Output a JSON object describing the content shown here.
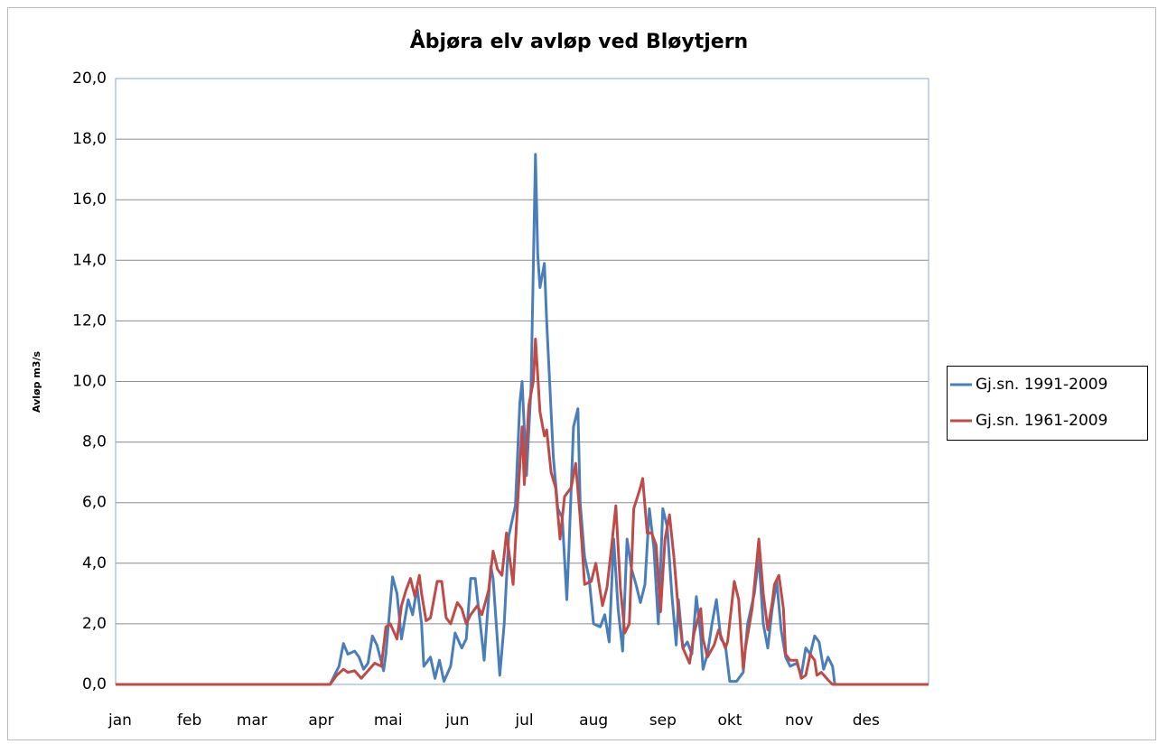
{
  "chart_data": {
    "type": "line",
    "title": "Åbjøra elv avløp ved Bløytjern",
    "y_label": "Avløp m3/s",
    "xlim": [
      1,
      365
    ],
    "xticks": [
      {
        "value": 1,
        "label": "jan"
      },
      {
        "value": 32,
        "label": "feb"
      },
      {
        "value": 60,
        "label": "mar"
      },
      {
        "value": 91,
        "label": "apr"
      },
      {
        "value": 121,
        "label": "mai"
      },
      {
        "value": 152,
        "label": "jun"
      },
      {
        "value": 182,
        "label": "jul"
      },
      {
        "value": 213,
        "label": "aug"
      },
      {
        "value": 244,
        "label": "sep"
      },
      {
        "value": 274,
        "label": "okt"
      },
      {
        "value": 305,
        "label": "nov"
      },
      {
        "value": 335,
        "label": "des"
      }
    ],
    "ylim": [
      0,
      20
    ],
    "yticks": [
      {
        "value": 0,
        "label": "0,0"
      },
      {
        "value": 2,
        "label": "2,0"
      },
      {
        "value": 4,
        "label": "4,0"
      },
      {
        "value": 6,
        "label": "6,0"
      },
      {
        "value": 8,
        "label": "8,0"
      },
      {
        "value": 10,
        "label": "10,0"
      },
      {
        "value": 12,
        "label": "12,0"
      },
      {
        "value": 14,
        "label": "14,0"
      },
      {
        "value": 16,
        "label": "16,0"
      },
      {
        "value": 18,
        "label": "18,0"
      },
      {
        "value": 20,
        "label": "20,0"
      }
    ],
    "grid": true,
    "legend": "right",
    "series": [
      {
        "name": "Gj.sn. 1991-2009",
        "color": "#4a7ebb",
        "x": [
          1,
          97,
          99,
          101,
          103,
          105,
          108,
          110,
          112,
          114,
          116,
          118,
          121,
          122,
          125,
          127,
          129,
          132,
          134,
          136,
          138,
          139,
          142,
          144,
          146,
          148,
          151,
          153,
          156,
          158,
          160,
          162,
          165,
          166,
          169,
          170,
          173,
          175,
          177,
          180,
          182,
          183,
          185,
          187,
          189,
          190,
          191,
          193,
          194,
          197,
          199,
          201,
          203,
          204,
          206,
          208,
          209,
          211,
          213,
          215,
          218,
          220,
          222,
          224,
          226,
          228,
          230,
          232,
          234,
          236,
          238,
          240,
          242,
          244,
          246,
          248,
          250,
          252,
          253,
          255,
          257,
          259,
          261,
          263,
          264,
          266,
          268,
          270,
          272,
          274,
          276,
          279,
          282,
          284,
          287,
          289,
          291,
          293,
          295,
          297,
          299,
          301,
          303,
          306,
          308,
          310,
          312,
          314,
          316,
          318,
          320,
          322,
          323,
          365
        ],
        "values": [
          0,
          0,
          0.3,
          0.6,
          1.35,
          1.0,
          1.1,
          0.9,
          0.5,
          0.7,
          1.6,
          1.3,
          0.45,
          1.0,
          3.55,
          3.0,
          1.5,
          2.8,
          2.3,
          3.2,
          2.0,
          0.6,
          0.9,
          0.2,
          0.8,
          0.1,
          0.6,
          1.7,
          1.2,
          1.5,
          3.5,
          3.5,
          1.5,
          0.8,
          3.9,
          3.5,
          0.3,
          2.0,
          4.9,
          5.9,
          9.3,
          10.0,
          6.9,
          9.8,
          17.5,
          14.2,
          13.1,
          13.9,
          12.0,
          7.5,
          5.8,
          5.5,
          2.8,
          4.5,
          8.5,
          9.1,
          6.0,
          4.2,
          3.5,
          2.0,
          1.9,
          2.3,
          1.4,
          4.8,
          2.5,
          1.1,
          4.8,
          3.8,
          3.3,
          2.7,
          3.3,
          5.8,
          4.5,
          2.0,
          5.8,
          5.2,
          3.0,
          1.3,
          2.8,
          1.2,
          1.4,
          1.0,
          2.9,
          1.6,
          0.5,
          1.0,
          2.0,
          2.8,
          1.5,
          1.3,
          0.1,
          0.1,
          0.4,
          2.0,
          3.0,
          4.2,
          2.0,
          1.2,
          2.5,
          3.4,
          1.8,
          0.9,
          0.6,
          0.7,
          0.3,
          1.2,
          1.0,
          1.6,
          1.4,
          0.5,
          0.9,
          0.6,
          0.0,
          0
        ]
      },
      {
        "name": "Gj.sn. 1961-2009",
        "color": "#be4b48",
        "x": [
          1,
          97,
          100,
          103,
          105,
          108,
          111,
          114,
          117,
          120,
          122,
          124,
          127,
          129,
          131,
          133,
          135,
          137,
          138,
          140,
          142,
          145,
          147,
          149,
          151,
          154,
          156,
          158,
          160,
          163,
          165,
          168,
          170,
          172,
          174,
          176,
          179,
          181,
          183,
          184,
          186,
          188,
          189,
          191,
          193,
          194,
          196,
          198,
          200,
          202,
          205,
          207,
          209,
          211,
          214,
          216,
          219,
          221,
          223,
          225,
          227,
          229,
          231,
          233,
          236,
          237,
          239,
          241,
          243,
          245,
          247,
          249,
          251,
          253,
          255,
          258,
          260,
          263,
          264,
          266,
          269,
          271,
          274,
          275,
          278,
          280,
          282,
          283,
          286,
          288,
          289,
          291,
          293,
          295,
          296,
          298,
          300,
          301,
          303,
          306,
          308,
          310,
          312,
          314,
          315,
          317,
          320,
          322,
          365
        ],
        "values": [
          0,
          0,
          0.3,
          0.5,
          0.4,
          0.45,
          0.2,
          0.45,
          0.7,
          0.6,
          1.9,
          2.0,
          1.5,
          2.6,
          3.1,
          3.5,
          2.9,
          3.6,
          3.0,
          2.1,
          2.2,
          3.4,
          3.4,
          2.2,
          2.0,
          2.7,
          2.5,
          2.0,
          2.3,
          2.6,
          2.3,
          3.1,
          4.4,
          3.8,
          3.6,
          5.0,
          3.3,
          6.0,
          8.5,
          6.6,
          9.2,
          10.0,
          11.4,
          9.0,
          8.2,
          8.4,
          7.0,
          6.5,
          4.8,
          6.2,
          6.5,
          7.3,
          5.5,
          3.3,
          3.4,
          4.0,
          2.6,
          3.2,
          4.5,
          5.9,
          3.2,
          1.7,
          2.0,
          5.8,
          6.5,
          6.8,
          5.0,
          5.0,
          4.6,
          2.4,
          4.8,
          5.6,
          4.2,
          2.4,
          1.2,
          0.7,
          1.7,
          2.5,
          1.5,
          0.9,
          1.3,
          1.8,
          1.2,
          1.4,
          3.4,
          2.8,
          0.5,
          1.2,
          2.5,
          4.0,
          4.8,
          3.0,
          1.8,
          2.7,
          3.3,
          3.6,
          2.5,
          1.0,
          0.8,
          0.8,
          0.2,
          0.3,
          1.0,
          0.8,
          0.3,
          0.4,
          0.15,
          0.0,
          0
        ]
      }
    ]
  }
}
